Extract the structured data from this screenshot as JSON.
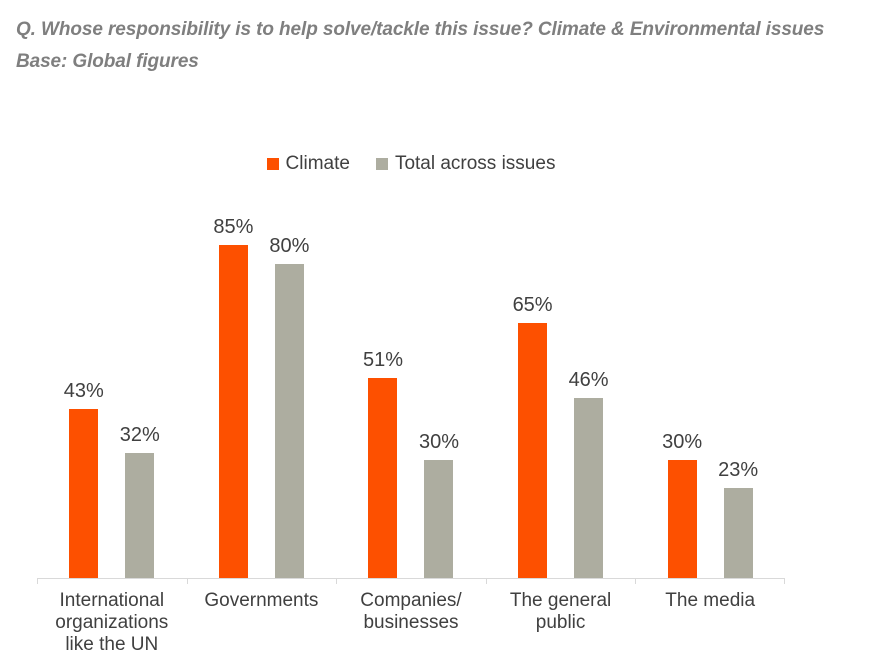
{
  "title": {
    "line1": "Q. Whose responsibility is to help solve/tackle this issue? Climate & Environmental issues",
    "line2": "Base: Global figures"
  },
  "legend": [
    {
      "label": "Climate",
      "color": "#FD5000"
    },
    {
      "label": "Total across issues",
      "color": "#ADADA0"
    }
  ],
  "chart_data": {
    "type": "bar",
    "title": "Q. Whose responsibility is to help solve/tackle this issue? Climate & Environmental issues",
    "subtitle": "Base: Global figures",
    "categories": [
      "International organizations like the UN",
      "Governments",
      "Companies/ businesses",
      "The general public",
      "The media"
    ],
    "series": [
      {
        "name": "Climate",
        "color": "#FD5000",
        "values": [
          43,
          85,
          51,
          65,
          30
        ]
      },
      {
        "name": "Total across issues",
        "color": "#ADADA0",
        "values": [
          32,
          80,
          30,
          46,
          23
        ]
      }
    ],
    "value_suffix": "%",
    "ylim": [
      0,
      100
    ],
    "grid": false,
    "y_axis_visible": false,
    "legend_position": "top-center",
    "colors": {
      "axis": "#D9D9D9",
      "data_label": "#404040",
      "title_text": "#7F7F7F"
    }
  }
}
